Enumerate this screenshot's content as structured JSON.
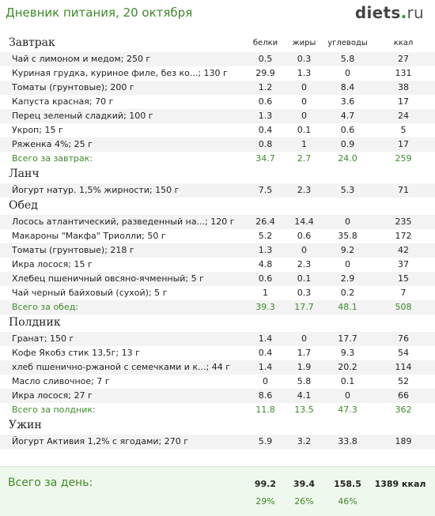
{
  "header": {
    "title": "Дневник питания, 20 октября",
    "logo_main": "diets",
    "logo_dot": ".",
    "logo_tld": "ru"
  },
  "columns": [
    "белки",
    "жиры",
    "углеводы",
    "ккал"
  ],
  "meals": [
    {
      "title": "Завтрак",
      "items": [
        [
          "Чай с лимоном и медом; 250 г",
          "0.5",
          "0.3",
          "5.8",
          "27"
        ],
        [
          "Куриная грудка, куриное филе, без ко...; 130 г",
          "29.9",
          "1.3",
          "0",
          "131"
        ],
        [
          "Томаты (грунтовые); 200 г",
          "1.2",
          "0",
          "8.4",
          "38"
        ],
        [
          "Капуста красная; 70 г",
          "0.6",
          "0",
          "3.6",
          "17"
        ],
        [
          "Перец зеленый сладкий; 100 г",
          "1.3",
          "0",
          "4.7",
          "24"
        ],
        [
          "Укроп; 15 г",
          "0.4",
          "0.1",
          "0.6",
          "5"
        ],
        [
          "Ряженка 4%; 25 г",
          "0.8",
          "1",
          "0.9",
          "17"
        ]
      ],
      "total": [
        "Всего за завтрак:",
        "34.7",
        "2.7",
        "24.0",
        "259"
      ]
    },
    {
      "title": "Ланч",
      "items": [
        [
          "Йогурт натур. 1,5% жирности; 150 г",
          "7.5",
          "2.3",
          "5.3",
          "71"
        ]
      ]
    },
    {
      "title": "Обед",
      "items": [
        [
          "Лосось атлантический, разведенный на...; 120 г",
          "26.4",
          "14.4",
          "0",
          "235"
        ],
        [
          "Макароны \"Макфа\" Триолли; 50 г",
          "5.2",
          "0.6",
          "35.8",
          "172"
        ],
        [
          "Томаты (грунтовые); 218 г",
          "1.3",
          "0",
          "9.2",
          "42"
        ],
        [
          "Икра лосося; 15 г",
          "4.8",
          "2.3",
          "0",
          "37"
        ],
        [
          "Хлебец пшеничный овсяно-ячменный; 5 г",
          "0.6",
          "0.1",
          "2.9",
          "15"
        ],
        [
          "Чай черный байховый (сухой); 5 г",
          "1",
          "0.3",
          "0.2",
          "7"
        ]
      ],
      "total": [
        "Всего за обед:",
        "39.3",
        "17.7",
        "48.1",
        "508"
      ]
    },
    {
      "title": "Полдник",
      "items": [
        [
          "Гранат; 150 г",
          "1.4",
          "0",
          "17.7",
          "76"
        ],
        [
          "Кофе Якобз стик 13,5г; 13 г",
          "0.4",
          "1.7",
          "9.3",
          "54"
        ],
        [
          "хлеб пшенично-ржаной с семечками и к...; 44 г",
          "1.4",
          "1.9",
          "20.2",
          "114"
        ],
        [
          "Масло сливочное; 7 г",
          "0",
          "5.8",
          "0.1",
          "52"
        ],
        [
          "Икра лосося; 27 г",
          "8.6",
          "4.1",
          "0",
          "66"
        ]
      ],
      "total": [
        "Всего за полдник:",
        "11.8",
        "13.5",
        "47.3",
        "362"
      ]
    },
    {
      "title": "Ужин",
      "items": [
        [
          "Йогурт Активия 1,2% с ягодами; 270 г",
          "5.9",
          "3.2",
          "33.8",
          "189"
        ]
      ]
    }
  ],
  "day_total": {
    "label": "Всего за день:",
    "values": [
      "99.2",
      "39.4",
      "158.5",
      "1389 ккал"
    ],
    "percents": [
      "29%",
      "26%",
      "46%"
    ]
  },
  "colors": {
    "accent_green": "#3d8a2a",
    "row_alt": "#f3f3f3",
    "day_bg": "#eff8ec"
  }
}
